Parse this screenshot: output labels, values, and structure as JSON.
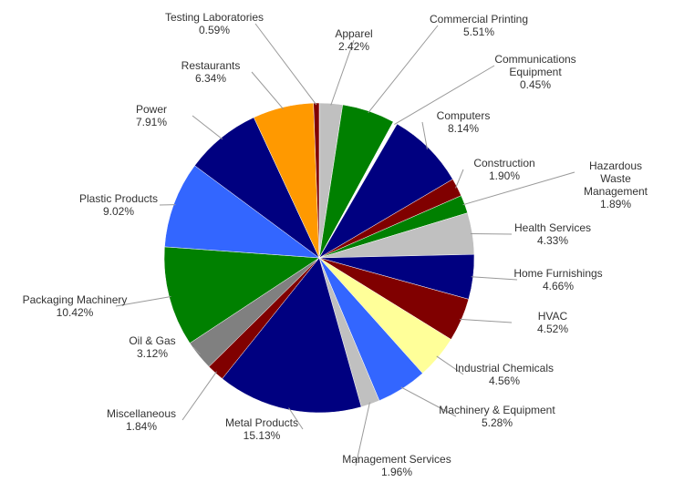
{
  "chart_data": {
    "type": "pie",
    "categories": [
      "Apparel",
      "Commercial Printing",
      "Communications\nEquipment",
      "Computers",
      "Construction",
      "Hazardous Waste\nManagement",
      "Health Services",
      "Home Furnishings",
      "HVAC",
      "Industrial Chemicals",
      "Machinery & Equipment",
      "Management Services",
      "Metal Products",
      "Miscellaneous",
      "Oil & Gas",
      "Packaging Machinery",
      "Plastic Products",
      "Power",
      "Restaurants",
      "Testing Laboratories"
    ],
    "values": [
      2.42,
      5.51,
      0.45,
      8.14,
      1.9,
      1.89,
      4.33,
      4.66,
      4.52,
      4.56,
      5.28,
      1.96,
      15.13,
      1.84,
      3.12,
      10.42,
      9.02,
      7.91,
      6.34,
      0.59
    ],
    "value_labels": [
      "2.42%",
      "5.51%",
      "0.45%",
      "8.14%",
      "1.90%",
      "1.89%",
      "4.33%",
      "4.66%",
      "4.52%",
      "4.56%",
      "5.28%",
      "1.96%",
      "15.13%",
      "1.84%",
      "3.12%",
      "10.42%",
      "9.02%",
      "7.91%",
      "6.34%",
      "0.59%"
    ],
    "colors": [
      "#c0c0c0",
      "#008000",
      "#ffffff",
      "#000080",
      "#800000",
      "#008000",
      "#c0c0c0",
      "#000080",
      "#800000",
      "#ffff99",
      "#3366ff",
      "#c0c0c0",
      "#000080",
      "#800000",
      "#808080",
      "#008000",
      "#3366ff",
      "#000080",
      "#ff9900",
      "#800000"
    ]
  }
}
